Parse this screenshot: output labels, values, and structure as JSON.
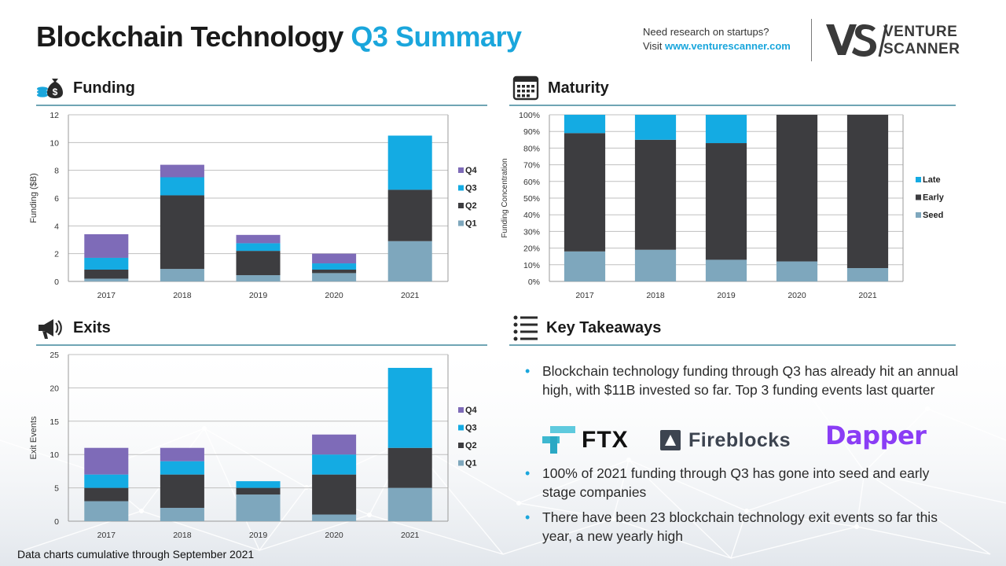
{
  "header": {
    "title_main": "Blockchain Technology",
    "title_highlight": "Q3 Summary",
    "research_line1": "Need research on startups?",
    "research_visit": "Visit",
    "research_url": "www.venturescanner.com",
    "logo_line1": "VENTURE",
    "logo_line2": "SCANNER",
    "accent_color": "#1aa6dc"
  },
  "sections": {
    "funding": {
      "title": "Funding",
      "icon": "money-bag-icon"
    },
    "maturity": {
      "title": "Maturity",
      "icon": "calendar-icon"
    },
    "exits": {
      "title": "Exits",
      "icon": "megaphone-icon"
    },
    "takeaways": {
      "title": "Key Takeaways",
      "icon": "list-icon"
    }
  },
  "chart_data": [
    {
      "id": "funding",
      "type": "bar",
      "stacked": true,
      "ylabel": "Funding ($B)",
      "ylim": [
        0,
        12
      ],
      "yticks": [
        "0",
        "2",
        "4",
        "6",
        "8",
        "10",
        "12"
      ],
      "grid": true,
      "legend": "right",
      "categories": [
        "2017",
        "2018",
        "2019",
        "2020",
        "2021"
      ],
      "series": [
        {
          "name": "Q1",
          "color": "#7ea7bd",
          "values": [
            0.2,
            0.9,
            0.45,
            0.6,
            2.9
          ]
        },
        {
          "name": "Q2",
          "color": "#3d3d40",
          "values": [
            0.65,
            5.3,
            1.75,
            0.25,
            3.7
          ]
        },
        {
          "name": "Q3",
          "color": "#14abe3",
          "values": [
            0.85,
            1.3,
            0.55,
            0.45,
            3.9
          ]
        },
        {
          "name": "Q4",
          "color": "#7e6bb8",
          "values": [
            1.7,
            0.9,
            0.6,
            0.7,
            0
          ]
        }
      ]
    },
    {
      "id": "maturity",
      "type": "bar",
      "stacked": true,
      "ylabel": "Funding Concentration",
      "ylim": [
        0,
        100
      ],
      "yticks": [
        "0%",
        "10%",
        "20%",
        "30%",
        "40%",
        "50%",
        "60%",
        "70%",
        "80%",
        "90%",
        "100%"
      ],
      "grid": true,
      "legend": "right",
      "categories": [
        "2017",
        "2018",
        "2019",
        "2020",
        "2021"
      ],
      "series": [
        {
          "name": "Seed",
          "color": "#7ea7bd",
          "values": [
            18,
            19,
            13,
            12,
            8
          ]
        },
        {
          "name": "Early",
          "color": "#3d3d40",
          "values": [
            71,
            66,
            70,
            88,
            92
          ]
        },
        {
          "name": "Late",
          "color": "#14abe3",
          "values": [
            11,
            15,
            17,
            0,
            0
          ]
        }
      ]
    },
    {
      "id": "exits",
      "type": "bar",
      "stacked": true,
      "ylabel": "Exit Events",
      "ylim": [
        0,
        25
      ],
      "yticks": [
        "0",
        "5",
        "10",
        "15",
        "20",
        "25"
      ],
      "grid": true,
      "legend": "right",
      "categories": [
        "2017",
        "2018",
        "2019",
        "2020",
        "2021"
      ],
      "series": [
        {
          "name": "Q1",
          "color": "#7ea7bd",
          "values": [
            3,
            2,
            4,
            1,
            5
          ]
        },
        {
          "name": "Q2",
          "color": "#3d3d40",
          "values": [
            2,
            5,
            1,
            6,
            6
          ]
        },
        {
          "name": "Q3",
          "color": "#14abe3",
          "values": [
            2,
            2,
            1,
            3,
            12
          ]
        },
        {
          "name": "Q4",
          "color": "#7e6bb8",
          "values": [
            4,
            2,
            0,
            3,
            0
          ]
        }
      ]
    }
  ],
  "takeaways": {
    "bullets": [
      "Blockchain technology funding through Q3 has already hit an annual high, with $11B invested so far. Top 3 funding events last quarter",
      "100% of 2021 funding through Q3 has gone into seed and early stage companies",
      "There have been 23 blockchain technology exit events so far this year, a new yearly high"
    ],
    "brands": [
      "FTX",
      "Fireblocks",
      "Dapper"
    ]
  },
  "footnote": "Data charts cumulative through September 2021"
}
